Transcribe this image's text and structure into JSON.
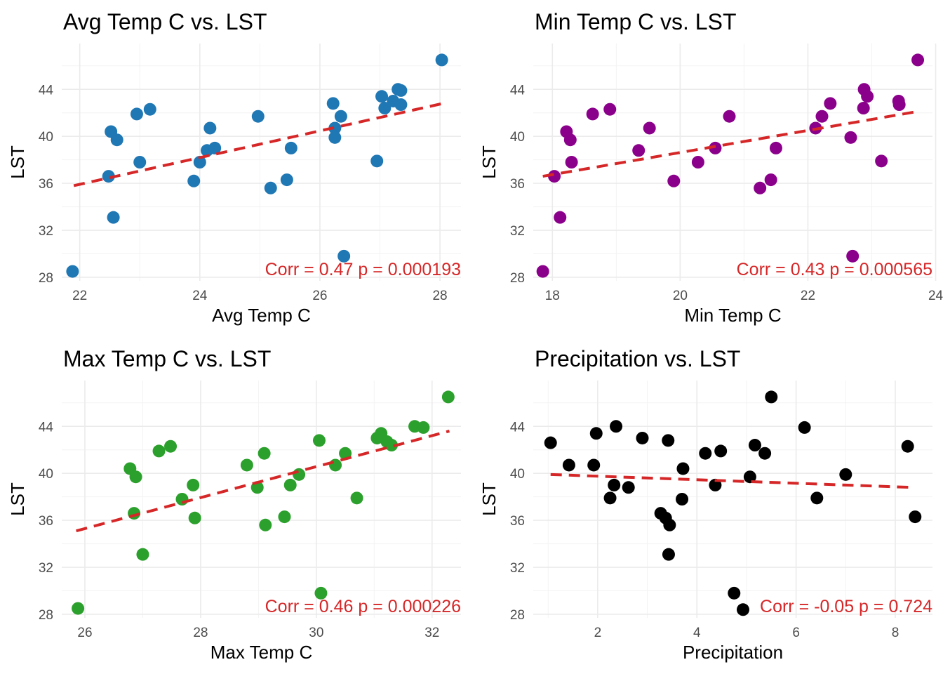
{
  "chart_data": [
    {
      "type": "scatter",
      "title": "Avg Temp C vs. LST",
      "xlabel": "Avg Temp C",
      "ylabel": "LST",
      "xlim": [
        21.7,
        28.35
      ],
      "ylim": [
        27.7,
        47.9
      ],
      "xticks": [
        22,
        24,
        26,
        28
      ],
      "yticks": [
        28,
        32,
        36,
        40,
        44
      ],
      "color": "#1f77b4",
      "trend_color": "#d62728",
      "trend": {
        "x": [
          21.9,
          28.05
        ],
        "y": [
          35.8,
          42.8
        ]
      },
      "annotation": "Corr = 0.47 p = 0.000193",
      "points": {
        "x": [
          21.88,
          22.48,
          22.52,
          22.56,
          22.62,
          22.95,
          23.0,
          23.17,
          23.9,
          24.0,
          24.12,
          24.17,
          24.25,
          24.97,
          25.18,
          25.45,
          25.52,
          26.22,
          26.25,
          26.25,
          26.35,
          26.4,
          26.95,
          27.03,
          27.08,
          27.22,
          27.3,
          27.35,
          27.35,
          28.03
        ],
        "y": [
          28.5,
          36.6,
          40.4,
          33.1,
          39.7,
          41.9,
          37.8,
          42.3,
          36.2,
          37.8,
          38.8,
          40.7,
          39.0,
          41.7,
          35.6,
          36.3,
          39.0,
          42.8,
          40.7,
          39.9,
          41.7,
          29.8,
          37.9,
          43.4,
          42.4,
          43.0,
          44.0,
          43.9,
          42.7,
          46.5
        ]
      }
    },
    {
      "type": "scatter",
      "title": "Min Temp C vs. LST",
      "xlabel": "Min Temp C",
      "ylabel": "LST",
      "xlim": [
        17.7,
        23.95
      ],
      "ylim": [
        27.7,
        47.9
      ],
      "xticks": [
        18,
        20,
        22,
        24
      ],
      "yticks": [
        28,
        32,
        36,
        40,
        44
      ],
      "color": "#8b008b",
      "trend_color": "#d62728",
      "trend": {
        "x": [
          17.85,
          23.7
        ],
        "y": [
          36.6,
          42.1
        ]
      },
      "annotation": "Corr = 0.43 p = 0.000565",
      "points": {
        "x": [
          17.85,
          18.03,
          18.12,
          18.22,
          18.28,
          18.3,
          18.63,
          18.9,
          19.35,
          19.52,
          19.9,
          20.28,
          20.55,
          20.77,
          21.25,
          21.42,
          21.5,
          22.12,
          22.22,
          22.35,
          22.67,
          22.7,
          22.87,
          22.88,
          22.93,
          23.15,
          23.42,
          23.43,
          23.72
        ],
        "y": [
          28.5,
          36.6,
          33.1,
          40.4,
          39.7,
          37.8,
          41.9,
          42.3,
          38.8,
          40.7,
          36.2,
          37.8,
          39.0,
          41.7,
          35.6,
          36.3,
          39.0,
          40.7,
          41.7,
          42.8,
          39.9,
          29.8,
          42.4,
          44.0,
          43.4,
          37.9,
          43.0,
          42.7,
          46.5
        ]
      }
    },
    {
      "type": "scatter",
      "title": "Max Temp C vs. LST",
      "xlabel": "Max Temp C",
      "ylabel": "LST",
      "xlim": [
        25.6,
        32.5
      ],
      "ylim": [
        27.7,
        47.9
      ],
      "xticks": [
        26,
        28,
        30,
        32
      ],
      "yticks": [
        28,
        32,
        36,
        40,
        44
      ],
      "color": "#2ca02c",
      "trend_color": "#d62728",
      "trend": {
        "x": [
          25.85,
          32.3
        ],
        "y": [
          35.1,
          43.6
        ]
      },
      "annotation": "Corr = 0.46 p = 0.000226",
      "points": {
        "x": [
          25.88,
          26.78,
          26.85,
          26.88,
          27.0,
          27.28,
          27.48,
          27.68,
          27.87,
          27.9,
          28.8,
          28.98,
          29.1,
          29.12,
          29.45,
          29.55,
          29.7,
          30.05,
          30.08,
          30.33,
          30.5,
          30.7,
          31.05,
          31.12,
          31.22,
          31.3,
          31.7,
          31.85,
          32.28
        ],
        "y": [
          28.5,
          40.4,
          36.6,
          39.7,
          33.1,
          41.9,
          42.3,
          37.8,
          39.0,
          36.2,
          40.7,
          38.8,
          41.7,
          35.6,
          36.3,
          39.0,
          39.9,
          42.8,
          29.8,
          40.7,
          41.7,
          37.9,
          43.0,
          43.4,
          42.7,
          42.4,
          44.0,
          43.9,
          46.5
        ]
      }
    },
    {
      "type": "scatter",
      "title": "Precipitation vs. LST",
      "xlabel": "Precipitation",
      "ylabel": "LST",
      "xlim": [
        0.7,
        8.75
      ],
      "ylim": [
        27.7,
        47.9
      ],
      "xticks": [
        2,
        4,
        6,
        8
      ],
      "yticks": [
        28,
        32,
        36,
        40,
        44
      ],
      "color": "#000000",
      "trend_color": "#d62728",
      "trend": {
        "x": [
          1.05,
          8.35
        ],
        "y": [
          39.9,
          38.8
        ]
      },
      "annotation": "Corr = -0.05 p = 0.724",
      "points": {
        "x": [
          1.05,
          1.42,
          1.92,
          1.97,
          2.25,
          2.33,
          2.37,
          2.62,
          2.9,
          3.27,
          3.37,
          3.42,
          3.43,
          3.45,
          3.7,
          3.72,
          4.17,
          4.37,
          4.48,
          4.75,
          4.93,
          5.07,
          5.17,
          5.37,
          5.5,
          6.17,
          6.42,
          7.0,
          8.25,
          8.4
        ],
        "y": [
          42.6,
          40.7,
          40.7,
          43.4,
          37.9,
          39.0,
          44.0,
          38.8,
          43.0,
          36.6,
          36.2,
          42.8,
          33.1,
          35.6,
          37.8,
          40.4,
          41.7,
          39.0,
          41.9,
          29.8,
          28.4,
          39.7,
          42.4,
          41.7,
          46.5,
          43.9,
          37.9,
          39.9,
          42.3,
          36.3
        ]
      }
    }
  ]
}
